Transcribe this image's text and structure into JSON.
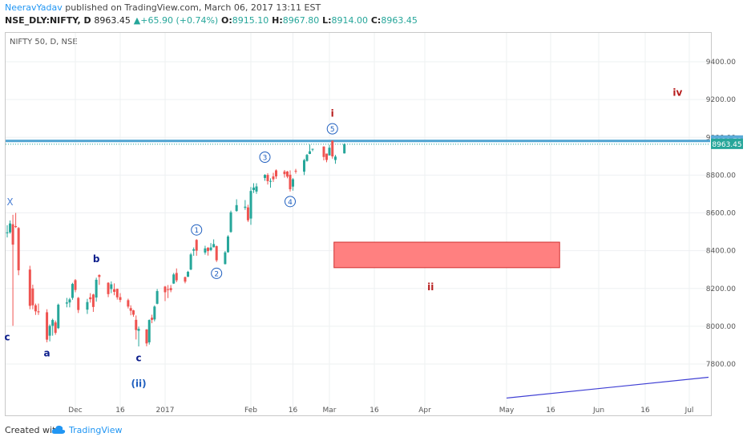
{
  "header": {
    "author": "NeeravYadav",
    "published": " published on TradingView.com, March 06, 2017 13:11 EST",
    "symbol": "NSE_DLY:NIFTY, D",
    "last": "8963.45",
    "change_arrow": "▲",
    "change": "+65.90 (+0.74%)",
    "open_label": "O:",
    "open": "8915.10",
    "high_label": "H:",
    "high": "8967.80",
    "low_label": "L:",
    "low": "8914.00",
    "close_label": "C:",
    "close": "8963.45"
  },
  "chart_title": "NIFTY 50, D, NSE",
  "footer": {
    "created_with": "Created with",
    "brand": "TradingView"
  },
  "colors": {
    "up": "#26a69a",
    "down": "#ef5350",
    "wave_blue": "#1565c0",
    "wave_red": "#b71c1c",
    "hline": "#4fa3d1",
    "box": "#ff8080",
    "trend": "#3f3fd4"
  },
  "chart_data": {
    "type": "candlestick",
    "yaxis": {
      "ticks": [
        7800,
        8000,
        8200,
        8400,
        8600,
        8800,
        9000,
        9200,
        9400
      ],
      "side": "right"
    },
    "xaxis": {
      "ticks": [
        "Dec",
        "16",
        "2017",
        "Feb",
        "16",
        "Mar",
        "16",
        "Apr",
        "May",
        "16",
        "Jun",
        "16",
        "Jul"
      ]
    },
    "horizontal_line": {
      "value": 8980.73,
      "label": "8980.73"
    },
    "last_price": {
      "value": 8963.45,
      "label": "8963.45"
    },
    "rectangle": {
      "price_top": 8445,
      "price_bottom": 8310,
      "from": "2017-03-02",
      "to": "2017-05-19"
    },
    "trend_line": {
      "from": {
        "date": "2017-05-01",
        "price": 7620
      },
      "to": {
        "date": "2017-07-25",
        "price": 7730
      }
    },
    "candles": [
      {
        "d": "2016-11-07",
        "o": 8492,
        "h": 8535,
        "l": 8470,
        "c": 8497
      },
      {
        "d": "2016-11-08",
        "o": 8497,
        "h": 8560,
        "l": 8490,
        "c": 8544
      },
      {
        "d": "2016-11-09",
        "o": 8540,
        "h": 8590,
        "l": 8002,
        "c": 8432
      },
      {
        "d": "2016-11-10",
        "o": 8530,
        "h": 8600,
        "l": 8520,
        "c": 8525
      },
      {
        "d": "2016-11-11",
        "o": 8520,
        "h": 8525,
        "l": 8270,
        "c": 8296
      },
      {
        "d": "2016-11-15",
        "o": 8300,
        "h": 8320,
        "l": 8090,
        "c": 8108
      },
      {
        "d": "2016-11-16",
        "o": 8200,
        "h": 8220,
        "l": 8090,
        "c": 8111
      },
      {
        "d": "2016-11-17",
        "o": 8111,
        "h": 8120,
        "l": 8060,
        "c": 8079
      },
      {
        "d": "2016-11-18",
        "o": 8079,
        "h": 8120,
        "l": 8060,
        "c": 8074
      },
      {
        "d": "2016-11-21",
        "o": 8074,
        "h": 8090,
        "l": 7915,
        "c": 7929
      },
      {
        "d": "2016-11-22",
        "o": 7950,
        "h": 8010,
        "l": 7920,
        "c": 8002
      },
      {
        "d": "2016-11-23",
        "o": 8002,
        "h": 8040,
        "l": 7950,
        "c": 8033
      },
      {
        "d": "2016-11-24",
        "o": 8020,
        "h": 8030,
        "l": 7955,
        "c": 7965
      },
      {
        "d": "2016-11-25",
        "o": 7990,
        "h": 8120,
        "l": 7985,
        "c": 8114
      },
      {
        "d": "2016-11-28",
        "o": 8120,
        "h": 8150,
        "l": 8100,
        "c": 8126
      },
      {
        "d": "2016-11-29",
        "o": 8126,
        "h": 8150,
        "l": 8100,
        "c": 8142
      },
      {
        "d": "2016-11-30",
        "o": 8150,
        "h": 8230,
        "l": 8140,
        "c": 8224
      },
      {
        "d": "2016-12-01",
        "o": 8244,
        "h": 8250,
        "l": 8180,
        "c": 8192
      },
      {
        "d": "2016-12-02",
        "o": 8150,
        "h": 8155,
        "l": 8070,
        "c": 8086
      },
      {
        "d": "2016-12-05",
        "o": 8088,
        "h": 8145,
        "l": 8065,
        "c": 8128
      },
      {
        "d": "2016-12-06",
        "o": 8153,
        "h": 8175,
        "l": 8125,
        "c": 8143
      },
      {
        "d": "2016-12-07",
        "o": 8168,
        "h": 8172,
        "l": 8076,
        "c": 8102
      },
      {
        "d": "2016-12-08",
        "o": 8152,
        "h": 8257,
        "l": 8130,
        "c": 8246
      },
      {
        "d": "2016-12-09",
        "o": 8271,
        "h": 8275,
        "l": 8219,
        "c": 8261
      },
      {
        "d": "2016-12-12",
        "o": 8230,
        "h": 8233,
        "l": 8154,
        "c": 8170
      },
      {
        "d": "2016-12-13",
        "o": 8197,
        "h": 8237,
        "l": 8175,
        "c": 8222
      },
      {
        "d": "2016-12-14",
        "o": 8196,
        "h": 8227,
        "l": 8164,
        "c": 8182
      },
      {
        "d": "2016-12-15",
        "o": 8198,
        "h": 8199,
        "l": 8141,
        "c": 8153
      },
      {
        "d": "2016-12-16",
        "o": 8154,
        "h": 8175,
        "l": 8127,
        "c": 8139
      },
      {
        "d": "2016-12-19",
        "o": 8138,
        "h": 8146,
        "l": 8094,
        "c": 8104
      },
      {
        "d": "2016-12-20",
        "o": 8096,
        "h": 8111,
        "l": 8058,
        "c": 8082
      },
      {
        "d": "2016-12-21",
        "o": 8084,
        "h": 8087,
        "l": 8050,
        "c": 8061
      },
      {
        "d": "2016-12-22",
        "o": 8034,
        "h": 8057,
        "l": 7930,
        "c": 7980
      },
      {
        "d": "2016-12-23",
        "o": 7976,
        "h": 7998,
        "l": 7893,
        "c": 7986
      },
      {
        "d": "2016-12-26",
        "o": 7983,
        "h": 7985,
        "l": 7894,
        "c": 7909
      },
      {
        "d": "2016-12-27",
        "o": 7915,
        "h": 8036,
        "l": 7903,
        "c": 8033
      },
      {
        "d": "2016-12-28",
        "o": 8045,
        "h": 8061,
        "l": 8016,
        "c": 8034
      },
      {
        "d": "2016-12-29",
        "o": 8036,
        "h": 8110,
        "l": 8026,
        "c": 8104
      },
      {
        "d": "2016-12-30",
        "o": 8119,
        "h": 8197,
        "l": 8116,
        "c": 8186
      },
      {
        "d": "2017-01-02",
        "o": 8210,
        "h": 8213,
        "l": 8133,
        "c": 8180
      },
      {
        "d": "2017-01-03",
        "o": 8196,
        "h": 8218,
        "l": 8149,
        "c": 8192
      },
      {
        "d": "2017-01-04",
        "o": 8202,
        "h": 8218,
        "l": 8180,
        "c": 8191
      },
      {
        "d": "2017-01-05",
        "o": 8226,
        "h": 8282,
        "l": 8224,
        "c": 8274
      },
      {
        "d": "2017-01-06",
        "o": 8282,
        "h": 8306,
        "l": 8233,
        "c": 8243
      },
      {
        "d": "2017-01-09",
        "o": 8260,
        "h": 8263,
        "l": 8227,
        "c": 8236
      },
      {
        "d": "2017-01-10",
        "o": 8262,
        "h": 8293,
        "l": 8260,
        "c": 8288
      },
      {
        "d": "2017-01-11",
        "o": 8300,
        "h": 8388,
        "l": 8297,
        "c": 8380
      },
      {
        "d": "2017-01-12",
        "o": 8400,
        "h": 8417,
        "l": 8373,
        "c": 8407
      },
      {
        "d": "2017-01-13",
        "o": 8457,
        "h": 8461,
        "l": 8373,
        "c": 8400
      },
      {
        "d": "2017-01-16",
        "o": 8390,
        "h": 8426,
        "l": 8379,
        "c": 8412
      },
      {
        "d": "2017-01-17",
        "o": 8415,
        "h": 8419,
        "l": 8374,
        "c": 8398
      },
      {
        "d": "2017-01-18",
        "o": 8403,
        "h": 8440,
        "l": 8397,
        "c": 8417
      },
      {
        "d": "2017-01-19",
        "o": 8418,
        "h": 8460,
        "l": 8417,
        "c": 8435
      },
      {
        "d": "2017-01-20",
        "o": 8424,
        "h": 8427,
        "l": 8340,
        "c": 8349
      },
      {
        "d": "2017-01-23",
        "o": 8329,
        "h": 8398,
        "l": 8327,
        "c": 8391
      },
      {
        "d": "2017-01-24",
        "o": 8392,
        "h": 8482,
        "l": 8389,
        "c": 8475
      },
      {
        "d": "2017-01-25",
        "o": 8499,
        "h": 8612,
        "l": 8495,
        "c": 8603
      },
      {
        "d": "2017-01-27",
        "o": 8610,
        "h": 8672,
        "l": 8606,
        "c": 8641
      },
      {
        "d": "2017-01-30",
        "o": 8627,
        "h": 8668,
        "l": 8616,
        "c": 8633
      },
      {
        "d": "2017-01-31",
        "o": 8629,
        "h": 8643,
        "l": 8552,
        "c": 8561
      },
      {
        "d": "2017-02-01",
        "o": 8570,
        "h": 8737,
        "l": 8537,
        "c": 8716
      },
      {
        "d": "2017-02-02",
        "o": 8721,
        "h": 8757,
        "l": 8705,
        "c": 8734
      },
      {
        "d": "2017-02-03",
        "o": 8713,
        "h": 8757,
        "l": 8701,
        "c": 8740
      },
      {
        "d": "2017-02-06",
        "o": 8785,
        "h": 8805,
        "l": 8770,
        "c": 8801
      },
      {
        "d": "2017-02-07",
        "o": 8801,
        "h": 8810,
        "l": 8750,
        "c": 8768
      },
      {
        "d": "2017-02-08",
        "o": 8769,
        "h": 8783,
        "l": 8733,
        "c": 8769
      },
      {
        "d": "2017-02-09",
        "o": 8793,
        "h": 8812,
        "l": 8764,
        "c": 8778
      },
      {
        "d": "2017-02-10",
        "o": 8825,
        "h": 8830,
        "l": 8780,
        "c": 8793
      },
      {
        "d": "2017-02-13",
        "o": 8819,
        "h": 8827,
        "l": 8787,
        "c": 8805
      },
      {
        "d": "2017-02-14",
        "o": 8819,
        "h": 8822,
        "l": 8783,
        "c": 8792
      },
      {
        "d": "2017-02-15",
        "o": 8802,
        "h": 8825,
        "l": 8713,
        "c": 8725
      },
      {
        "d": "2017-02-16",
        "o": 8739,
        "h": 8784,
        "l": 8718,
        "c": 8778
      },
      {
        "d": "2017-02-17",
        "o": 8823,
        "h": 8833,
        "l": 8808,
        "c": 8821
      },
      {
        "d": "2017-02-20",
        "o": 8818,
        "h": 8886,
        "l": 8800,
        "c": 8879
      },
      {
        "d": "2017-02-21",
        "o": 8875,
        "h": 8912,
        "l": 8871,
        "c": 8907
      },
      {
        "d": "2017-02-22",
        "o": 8912,
        "h": 8962,
        "l": 8911,
        "c": 8926
      },
      {
        "d": "2017-02-23",
        "o": 8936,
        "h": 8940,
        "l": 8926,
        "c": 8939
      },
      {
        "d": "2017-02-27",
        "o": 8951,
        "h": 8953,
        "l": 8878,
        "c": 8896
      },
      {
        "d": "2017-02-28",
        "o": 8914,
        "h": 8914,
        "l": 8868,
        "c": 8880
      },
      {
        "d": "2017-03-01",
        "o": 8904,
        "h": 8960,
        "l": 8904,
        "c": 8945
      },
      {
        "d": "2017-03-02",
        "o": 8982,
        "h": 8983,
        "l": 8887,
        "c": 8899
      },
      {
        "d": "2017-03-03",
        "o": 8880,
        "h": 8907,
        "l": 8860,
        "c": 8898
      },
      {
        "d": "2017-03-06",
        "o": 8915,
        "h": 8968,
        "l": 8914,
        "c": 8963
      }
    ],
    "annotations": [
      {
        "text": "X",
        "date": "2016-11-08",
        "price": 8640,
        "color": "blue_light",
        "circle": false
      },
      {
        "text": "c",
        "date": "2016-11-07",
        "price": 7925,
        "color": "navy",
        "circle": false
      },
      {
        "text": "a",
        "date": "2016-11-21",
        "price": 7840,
        "color": "navy",
        "circle": false
      },
      {
        "text": "b",
        "date": "2016-12-08",
        "price": 8340,
        "color": "navy",
        "circle": false
      },
      {
        "text": "c",
        "date": "2016-12-23",
        "price": 7815,
        "color": "navy",
        "circle": false
      },
      {
        "text": "(ii)",
        "date": "2016-12-23",
        "price": 7680,
        "color": "blue",
        "circle": false
      },
      {
        "text": "1",
        "date": "2017-01-13",
        "price": 8510,
        "color": "blue",
        "circle": true
      },
      {
        "text": "2",
        "date": "2017-01-20",
        "price": 8280,
        "color": "blue",
        "circle": true
      },
      {
        "text": "3",
        "date": "2017-02-06",
        "price": 8895,
        "color": "blue",
        "circle": true
      },
      {
        "text": "4",
        "date": "2017-02-15",
        "price": 8660,
        "color": "blue",
        "circle": true
      },
      {
        "text": "5",
        "date": "2017-03-02",
        "price": 9045,
        "color": "blue",
        "circle": true
      },
      {
        "text": "i",
        "date": "2017-03-02",
        "price": 9110,
        "color": "red",
        "circle": false
      },
      {
        "text": "ii",
        "date": "2017-04-05",
        "price": 8190,
        "color": "red",
        "circle": false
      },
      {
        "text": "iv",
        "date": "2017-06-27",
        "price": 9220,
        "color": "red",
        "circle": false
      }
    ]
  }
}
